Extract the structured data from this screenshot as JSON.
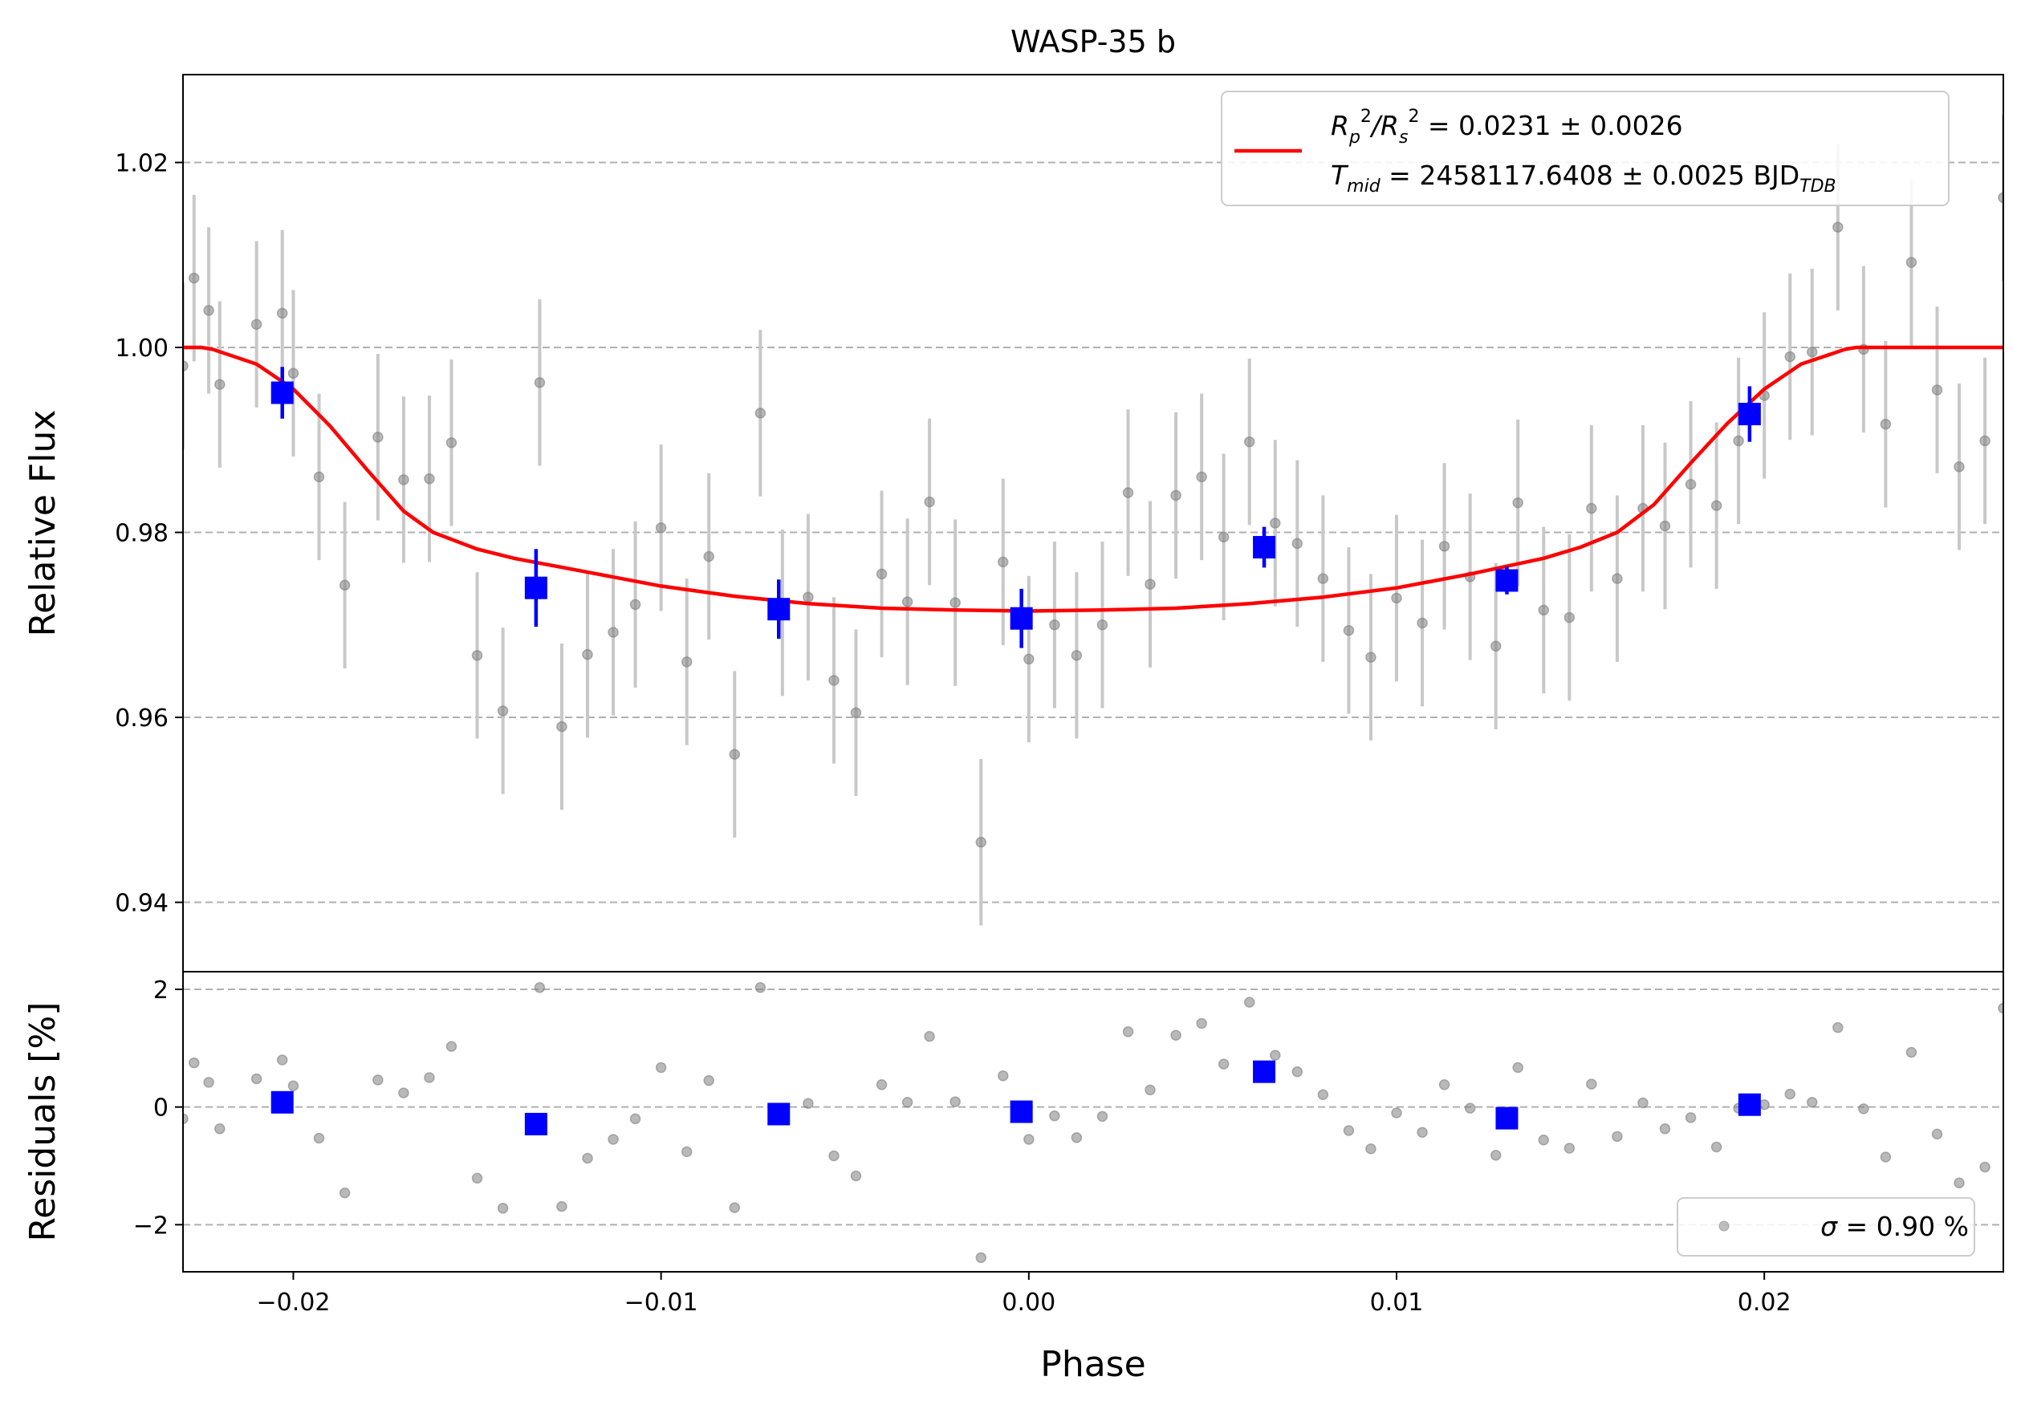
{
  "chart_data": {
    "type": "scatter",
    "title": "WASP-35 b",
    "xlabel": "Phase",
    "xlim": [
      -0.023,
      0.0265
    ],
    "xticks": [
      -0.02,
      -0.01,
      0.0,
      0.01,
      0.02
    ],
    "xtick_labels": [
      "−0.02",
      "−0.01",
      "0.00",
      "0.01",
      "0.02"
    ],
    "colors": {
      "model": "#ff0000",
      "binned": "#0000ff",
      "data": "#808080",
      "errorbar": "#c8c8c8",
      "grid": "#b0b0b0"
    },
    "top_panel": {
      "ylabel": "Relative Flux",
      "ylim": [
        0.9325,
        1.0295
      ],
      "yticks": [
        0.94,
        0.96,
        0.98,
        1.0,
        1.02
      ],
      "ytick_labels": [
        "0.94",
        "0.96",
        "0.98",
        "1.00",
        "1.02"
      ],
      "grid": "horizontal dashed",
      "legend": {
        "location": "upper right",
        "line1": {
          "prefix": "R",
          "sub1": "p",
          "sup1": "2",
          "slash": "/R",
          "sub2": "s",
          "sup2": "2",
          "rest": " = 0.0231 ± 0.0026"
        },
        "line2": {
          "prefix": "T",
          "sub1": "mid",
          "rest": " = 2458117.6408 ± 0.0025 BJD",
          "sub2": "TDB"
        }
      },
      "data_points": {
        "x": [
          -0.023,
          -0.0227,
          -0.0223,
          -0.022,
          -0.021,
          -0.0203,
          -0.02,
          -0.0193,
          -0.0186,
          -0.0177,
          -0.017,
          -0.0163,
          -0.0157,
          -0.015,
          -0.0143,
          -0.0133,
          -0.0127,
          -0.012,
          -0.0113,
          -0.0107,
          -0.01,
          -0.0093,
          -0.0087,
          -0.008,
          -0.0073,
          -0.0067,
          -0.006,
          -0.0053,
          -0.0047,
          -0.004,
          -0.0033,
          -0.0027,
          -0.002,
          -0.0013,
          -0.0007,
          0.0,
          0.0007,
          0.0013,
          0.002,
          0.0027,
          0.0033,
          0.004,
          0.0047,
          0.0053,
          0.006,
          0.0067,
          0.0073,
          0.008,
          0.0087,
          0.0093,
          0.01,
          0.0107,
          0.0113,
          0.012,
          0.0127,
          0.0133,
          0.014,
          0.0147,
          0.0153,
          0.016,
          0.0167,
          0.0173,
          0.018,
          0.0187,
          0.0193,
          0.02,
          0.0207,
          0.0213,
          0.022,
          0.0227,
          0.0233,
          0.024,
          0.0247,
          0.0253,
          0.026,
          0.0265
        ],
        "y": [
          0.998,
          1.0075,
          1.004,
          0.996,
          1.0025,
          1.0037,
          0.9972,
          0.986,
          0.9743,
          0.9903,
          0.9857,
          0.9858,
          0.9897,
          0.9667,
          0.9607,
          0.9962,
          0.959,
          0.9668,
          0.9692,
          0.9722,
          0.9805,
          0.966,
          0.9774,
          0.956,
          0.9929,
          0.9713,
          0.973,
          0.964,
          0.9605,
          0.9755,
          0.9725,
          0.9833,
          0.9724,
          0.9465,
          0.9768,
          0.9663,
          0.97,
          0.9667,
          0.97,
          0.9843,
          0.9744,
          0.984,
          0.986,
          0.9795,
          0.9898,
          0.981,
          0.9788,
          0.975,
          0.9694,
          0.9665,
          0.9729,
          0.9702,
          0.9785,
          0.9752,
          0.9677,
          0.9832,
          0.9716,
          0.9708,
          0.9826,
          0.975,
          0.9826,
          0.9807,
          0.9852,
          0.9829,
          0.9899,
          0.9948,
          0.999,
          0.9995,
          1.013,
          0.9998,
          0.9917,
          1.0092,
          0.9954,
          0.9871,
          0.9899,
          1.0162
        ],
        "yerr": 0.009
      },
      "binned_points": {
        "x": [
          -0.0203,
          -0.0134,
          -0.0068,
          -0.0002,
          0.0064,
          0.013,
          0.0196
        ],
        "y": [
          0.9951,
          0.974,
          0.9717,
          0.9707,
          0.9784,
          0.9748,
          0.9928
        ],
        "yerr": [
          0.0028,
          0.0042,
          0.0032,
          0.0032,
          0.0022,
          0.0015,
          0.003
        ]
      },
      "model": {
        "x": [
          -0.023,
          -0.0225,
          -0.0222,
          -0.021,
          -0.02,
          -0.019,
          -0.018,
          -0.017,
          -0.0162,
          -0.015,
          -0.014,
          -0.012,
          -0.01,
          -0.008,
          -0.006,
          -0.004,
          -0.002,
          0.0,
          0.002,
          0.004,
          0.006,
          0.008,
          0.01,
          0.012,
          0.014,
          0.015,
          0.016,
          0.017,
          0.018,
          0.019,
          0.02,
          0.021,
          0.0222,
          0.0225,
          0.0265
        ],
        "y": [
          1.0,
          1.0,
          0.9998,
          0.9982,
          0.9955,
          0.9915,
          0.9868,
          0.9823,
          0.98,
          0.9782,
          0.9772,
          0.9757,
          0.9742,
          0.9731,
          0.9723,
          0.9718,
          0.9716,
          0.9715,
          0.9716,
          0.9718,
          0.9723,
          0.973,
          0.974,
          0.9755,
          0.9772,
          0.9784,
          0.98,
          0.983,
          0.9875,
          0.9918,
          0.9955,
          0.9982,
          0.9998,
          1.0,
          1.0
        ]
      }
    },
    "bottom_panel": {
      "ylabel": "Residuals [%]",
      "ylim": [
        -2.8,
        2.3
      ],
      "yticks": [
        -2,
        0,
        2
      ],
      "ytick_labels": [
        "−2",
        "0",
        "2"
      ],
      "grid": "horizontal dashed",
      "legend": {
        "location": "lower right",
        "sigma_symbol": "σ",
        "text": " = 0.90 %"
      },
      "residuals": [
        -0.2,
        0.75,
        0.42,
        -0.37,
        0.48,
        0.8,
        0.36,
        -0.53,
        -1.46,
        0.46,
        0.24,
        0.5,
        1.03,
        -1.21,
        -1.72,
        2.03,
        -1.69,
        -0.87,
        -0.55,
        -0.2,
        0.67,
        -0.76,
        0.45,
        -1.71,
        2.03,
        -0.15,
        0.06,
        -0.83,
        -1.17,
        0.38,
        0.08,
        1.2,
        0.09,
        -2.56,
        0.53,
        -0.55,
        -0.15,
        -0.52,
        -0.16,
        1.28,
        0.29,
        1.22,
        1.42,
        0.73,
        1.78,
        0.88,
        0.6,
        0.21,
        -0.4,
        -0.71,
        -0.1,
        -0.43,
        0.38,
        -0.02,
        -0.82,
        0.67,
        -0.56,
        -0.7,
        0.39,
        -0.5,
        0.07,
        -0.37,
        -0.18,
        -0.68,
        -0.02,
        0.04,
        0.22,
        0.08,
        1.35,
        -0.03,
        -0.85,
        0.93,
        -0.46,
        -1.29,
        -1.02,
        1.68
      ],
      "binned_residuals": [
        0.08,
        -0.29,
        -0.12,
        -0.08,
        0.6,
        -0.19,
        0.04
      ]
    }
  }
}
